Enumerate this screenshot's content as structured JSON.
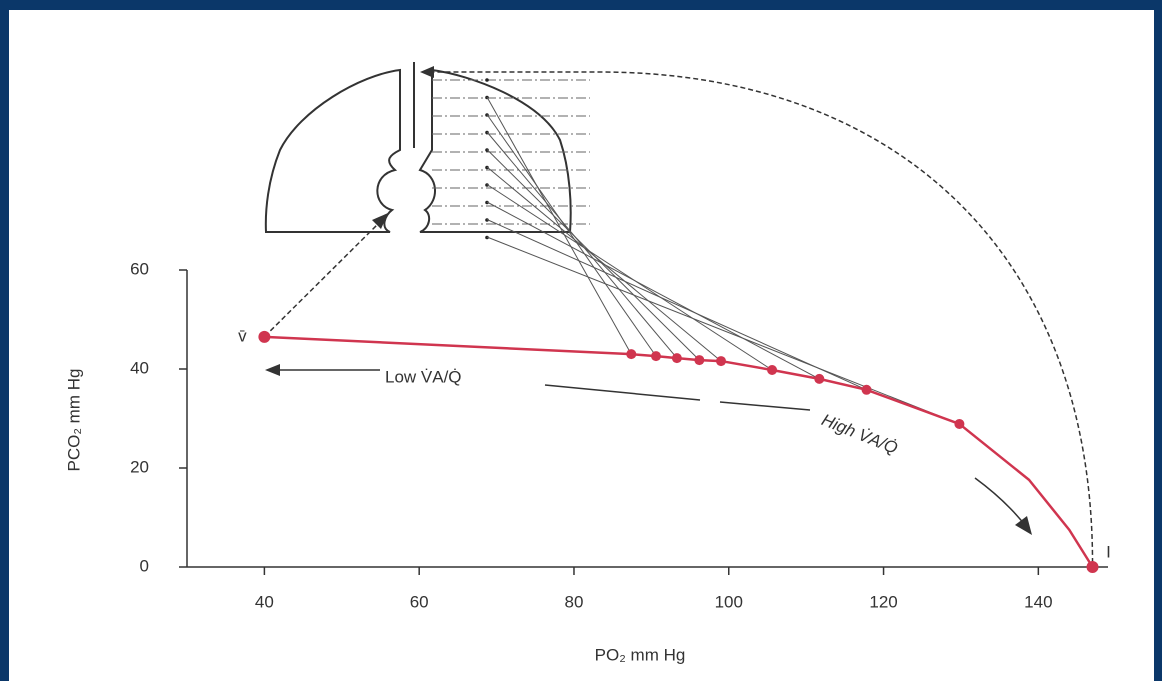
{
  "chart_data": {
    "type": "line",
    "x_label": "PO₂ mm Hg",
    "y_label": "PCO₂ mm Hg",
    "xlim": [
      30,
      149
    ],
    "xticks": [
      40,
      60,
      80,
      100,
      120,
      140
    ],
    "ylim": [
      0,
      60
    ],
    "yticks": [
      0,
      20,
      40,
      60
    ],
    "series": [
      {
        "color": "#d0354f",
        "x": [
          40,
          87.4,
          90.6,
          93.3,
          96.2,
          99.0,
          105.6,
          111.7,
          117.8,
          129.8,
          138.8,
          144,
          147
        ],
        "values": [
          46.5,
          43,
          42.6,
          42.2,
          41.8,
          41.6,
          39.8,
          38,
          35.8,
          28.9,
          17.6,
          7.5,
          0
        ]
      },
      {
        "color": "#d0354f",
        "x": [
          87.4,
          90.6,
          93.3,
          96.2,
          99.0,
          105.6,
          111.7,
          117.8,
          129.8
        ],
        "values": [
          43,
          42.6,
          42.2,
          41.8,
          41.6,
          39.8,
          38,
          35.8,
          28.9
        ]
      },
      {
        "color": "#d0354f",
        "x": [
          40,
          147
        ],
        "values": [
          46.5,
          0
        ]
      }
    ],
    "annotations": [
      "v̄",
      "I",
      "Low V̇A/Q̇",
      "High V̇A/Q̇"
    ]
  }
}
